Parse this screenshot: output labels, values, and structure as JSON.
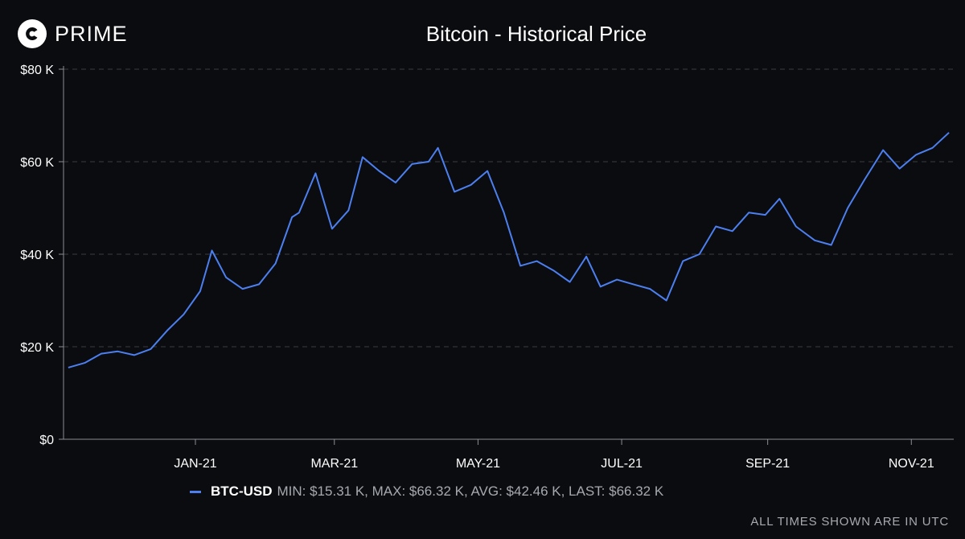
{
  "brand": {
    "name": "PRIME",
    "icon": "coinbase-prime-logo-icon"
  },
  "footnote": "ALL TIMES SHOWN ARE IN UTC",
  "colors": {
    "background": "#0b0c0f",
    "line": "#4c7ff0",
    "grid": "#3a3c42",
    "axis": "#8a8d94",
    "text": "#ffffff",
    "muted": "#a6a9b0"
  },
  "chart_data": {
    "type": "line",
    "title": "Bitcoin - Historical Price",
    "xlabel": "",
    "ylabel": "",
    "x_range": [
      "2020-11-06",
      "2021-11-19"
    ],
    "x": [
      "2020-11-08",
      "2020-11-15",
      "2020-11-22",
      "2020-11-29",
      "2020-12-06",
      "2020-12-13",
      "2020-12-20",
      "2020-12-27",
      "2021-01-03",
      "2021-01-08",
      "2021-01-14",
      "2021-01-21",
      "2021-01-28",
      "2021-02-04",
      "2021-02-11",
      "2021-02-14",
      "2021-02-21",
      "2021-02-28",
      "2021-03-07",
      "2021-03-13",
      "2021-03-20",
      "2021-03-27",
      "2021-04-03",
      "2021-04-10",
      "2021-04-14",
      "2021-04-21",
      "2021-04-28",
      "2021-05-05",
      "2021-05-12",
      "2021-05-19",
      "2021-05-26",
      "2021-06-02",
      "2021-06-09",
      "2021-06-16",
      "2021-06-22",
      "2021-06-29",
      "2021-07-06",
      "2021-07-13",
      "2021-07-20",
      "2021-07-27",
      "2021-08-03",
      "2021-08-10",
      "2021-08-17",
      "2021-08-24",
      "2021-08-31",
      "2021-09-06",
      "2021-09-13",
      "2021-09-21",
      "2021-09-28",
      "2021-10-05",
      "2021-10-12",
      "2021-10-20",
      "2021-10-27",
      "2021-11-03",
      "2021-11-10",
      "2021-11-17"
    ],
    "y_ticks": [
      0,
      20000,
      40000,
      60000,
      80000
    ],
    "y_tick_labels": [
      "$0",
      "$20 K",
      "$40 K",
      "$60 K",
      "$80 K"
    ],
    "x_ticks": [
      "2021-01-01",
      "2021-03-01",
      "2021-05-01",
      "2021-07-01",
      "2021-09-01",
      "2021-11-01"
    ],
    "x_tick_labels": [
      "JAN-21",
      "MAR-21",
      "MAY-21",
      "JUL-21",
      "SEP-21",
      "NOV-21"
    ],
    "ylim": [
      0,
      80000
    ],
    "grid": "horizontal dashed",
    "legend_placement": "bottom",
    "series": [
      {
        "name": "BTC-USD",
        "stats": "MIN: $15.31 K, MAX: $66.32 K, AVG: $42.46 K, LAST: $66.32 K",
        "values": [
          15500,
          16500,
          18500,
          19000,
          18200,
          19500,
          23500,
          27000,
          32000,
          40800,
          35000,
          32500,
          33500,
          38000,
          48000,
          49000,
          57500,
          45500,
          49500,
          61000,
          58000,
          55500,
          59500,
          60000,
          63000,
          53500,
          55000,
          58000,
          49000,
          37500,
          38500,
          36500,
          34000,
          39500,
          33000,
          34500,
          33500,
          32500,
          30000,
          38500,
          40000,
          46000,
          45000,
          49000,
          48500,
          52000,
          46000,
          43000,
          42000,
          50000,
          56000,
          62500,
          58500,
          61500,
          63000,
          66300
        ]
      }
    ]
  }
}
